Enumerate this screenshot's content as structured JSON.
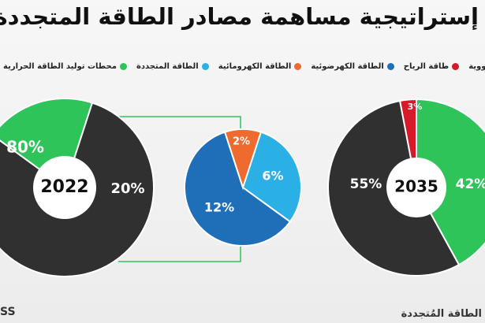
{
  "title": "إستراتيجية مساهمة مصادر الطاقة المتجددة في مصر",
  "legend": [
    {
      "label": "الطاقة النووية",
      "color": "#d7192a"
    },
    {
      "label": "طاقة الرياح",
      "color": "#d7192a"
    },
    {
      "label": "الطاقة الكهرضوئية",
      "color": "#1f6fb8"
    },
    {
      "label": "الطاقة الكهرومائية",
      "color": "#ee6a2e"
    },
    {
      "label": "الطاقة المتجددة",
      "color": "#2bb0e6"
    },
    {
      "label": "محطات توليد الطاقة الحرارية",
      "color": "#2ec45a"
    }
  ],
  "footer": {
    "right": "الطاقة المُتجددة",
    "left": "SS"
  },
  "chart_data": [
    {
      "type": "pie",
      "title": "2022",
      "slices": [
        {
          "label": "محطات توليد الطاقة الحرارية",
          "value": 80,
          "display": "80%",
          "color": "#303030"
        },
        {
          "label": "الطاقة المتجددة",
          "value": 20,
          "display": "20%",
          "color": "#2ec45a"
        }
      ]
    },
    {
      "type": "pie",
      "title": "",
      "slices": [
        {
          "label": "الطاقة الكهرضوئية",
          "value": 12,
          "display": "12%",
          "color": "#1f6fb8"
        },
        {
          "label": "الطاقة الكهرومائية",
          "value": 2,
          "display": "2%",
          "color": "#ee6a2e"
        },
        {
          "label": "الطاقة المتجددة",
          "value": 6,
          "display": "6%",
          "color": "#2bb0e6"
        }
      ]
    },
    {
      "type": "pie",
      "title": "2035",
      "slices": [
        {
          "label": "محطات توليد الطاقة الحرارية",
          "value": 55,
          "display": "55%",
          "color": "#303030"
        },
        {
          "label": "الطاقة النووية",
          "value": 3,
          "display": "3%",
          "color": "#d7192a"
        },
        {
          "label": "الطاقة المتجددة",
          "value": 42,
          "display": "42%",
          "color": "#2ec45a"
        }
      ]
    }
  ]
}
